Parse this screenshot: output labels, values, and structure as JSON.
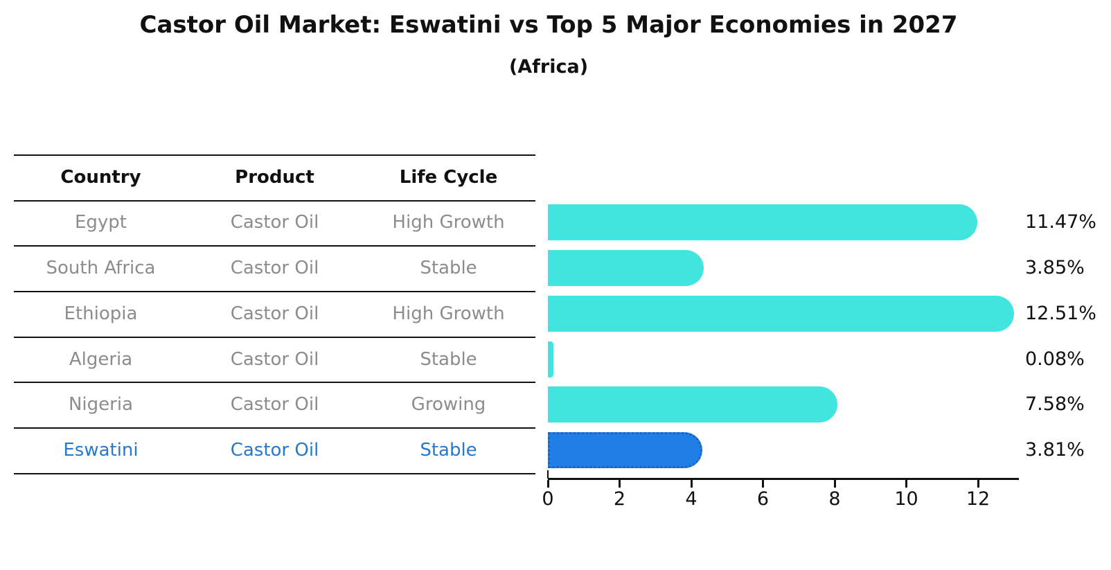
{
  "title": "Castor Oil Market: Eswatini vs Top 5 Major Economies in 2027",
  "subtitle": "(Africa)",
  "table": {
    "headers": [
      "Country",
      "Product",
      "Life Cycle"
    ],
    "rows": [
      {
        "country": "Egypt",
        "product": "Castor Oil",
        "life_cycle": "High Growth",
        "highlight": false
      },
      {
        "country": "South Africa",
        "product": "Castor Oil",
        "life_cycle": "Stable",
        "highlight": false
      },
      {
        "country": "Ethiopia",
        "product": "Castor Oil",
        "life_cycle": "High Growth",
        "highlight": false
      },
      {
        "country": "Algeria",
        "product": "Castor Oil",
        "life_cycle": "Stable",
        "highlight": false
      },
      {
        "country": "Nigeria",
        "product": "Castor Oil",
        "life_cycle": "Growing",
        "highlight": false
      },
      {
        "country": "Eswatini",
        "product": "Castor Oil",
        "life_cycle": "Stable",
        "highlight": true
      }
    ]
  },
  "chart_data": {
    "type": "bar",
    "orientation": "horizontal",
    "title": "Castor Oil Market: Eswatini vs Top 5 Major Economies in 2027",
    "subtitle": "(Africa)",
    "categories": [
      "Egypt",
      "South Africa",
      "Ethiopia",
      "Algeria",
      "Nigeria",
      "Eswatini"
    ],
    "values": [
      11.47,
      3.85,
      12.51,
      0.08,
      7.58,
      3.81
    ],
    "value_labels": [
      "11.47%",
      "3.85%",
      "12.51%",
      "0.08%",
      "7.58%",
      "3.81%"
    ],
    "x_ticks": [
      0,
      2,
      4,
      6,
      8,
      10,
      12
    ],
    "xlim": [
      0,
      13.25
    ],
    "grid": false,
    "legend": false,
    "highlight_index": 5
  },
  "colors": {
    "bar": "#40e5e0",
    "highlight_bar": "#1f7fe6",
    "highlight_bar_border": "#1a62c8",
    "highlight_text": "#2878cc",
    "table_text": "#8c8c8c",
    "header_text": "#111111",
    "line": "#111111"
  }
}
